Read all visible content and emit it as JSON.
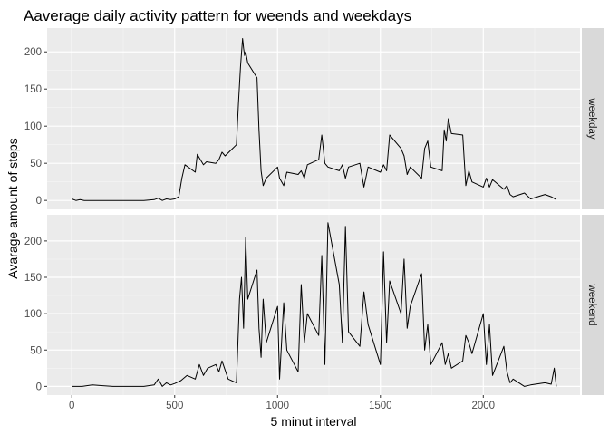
{
  "chart_data": {
    "type": "line",
    "title": "Aaverage daily activity pattern for weends and weekdays",
    "xlabel": "5 minut interval",
    "ylabel": "Avarage amount of steps",
    "xlim": [
      -120,
      2470
    ],
    "x_ticks": [
      0,
      500,
      1000,
      1500,
      2000
    ],
    "grid": true,
    "line_color": "#000000",
    "panel_background": "#ebebeb",
    "strip_background": "#d9d9d9",
    "facets": [
      {
        "label": "weekday",
        "ylim": [
          -12,
          232
        ],
        "y_ticks": [
          0,
          50,
          100,
          150,
          200
        ],
        "series": [
          {
            "x": [
              0,
              20,
              40,
              60,
              100,
              150,
              200,
              250,
              300,
              350,
              400,
              420,
              440,
              460,
              480,
              500,
              520,
              535,
              550,
              600,
              610,
              625,
              640,
              655,
              700,
              715,
              730,
              745,
              800,
              810,
              820,
              830,
              835,
              840,
              845,
              855,
              900,
              910,
              920,
              930,
              945,
              1000,
              1010,
              1030,
              1045,
              1100,
              1115,
              1130,
              1145,
              1200,
              1215,
              1230,
              1245,
              1300,
              1315,
              1330,
              1345,
              1400,
              1420,
              1440,
              1500,
              1515,
              1530,
              1545,
              1600,
              1615,
              1630,
              1645,
              1700,
              1715,
              1730,
              1745,
              1800,
              1810,
              1820,
              1830,
              1845,
              1900,
              1915,
              1930,
              1945,
              2000,
              2015,
              2030,
              2045,
              2100,
              2115,
              2130,
              2145,
              2200,
              2230,
              2300,
              2330,
              2355
            ],
            "y": [
              2,
              0,
              1,
              0,
              0,
              0,
              0,
              0,
              0,
              0,
              1,
              3,
              0,
              2,
              1,
              2,
              5,
              30,
              48,
              38,
              62,
              55,
              48,
              52,
              50,
              55,
              65,
              60,
              75,
              130,
              180,
              218,
              205,
              195,
              200,
              185,
              165,
              95,
              40,
              20,
              30,
              45,
              30,
              20,
              38,
              35,
              40,
              30,
              48,
              55,
              88,
              50,
              45,
              40,
              48,
              30,
              45,
              50,
              18,
              45,
              38,
              48,
              40,
              88,
              70,
              60,
              35,
              45,
              30,
              70,
              80,
              45,
              40,
              95,
              80,
              110,
              90,
              88,
              20,
              40,
              25,
              18,
              30,
              18,
              28,
              15,
              20,
              8,
              5,
              10,
              2,
              8,
              5,
              1
            ]
          }
        ]
      },
      {
        "label": "weekend",
        "ylim": [
          -12,
          236
        ],
        "y_ticks": [
          0,
          50,
          100,
          150,
          200
        ],
        "series": [
          {
            "x": [
              0,
              50,
              100,
              150,
              200,
              250,
              300,
              350,
              400,
              420,
              440,
              460,
              480,
              500,
              530,
              560,
              600,
              620,
              640,
              660,
              700,
              715,
              730,
              760,
              800,
              815,
              825,
              835,
              845,
              855,
              900,
              910,
              920,
              930,
              945,
              1000,
              1010,
              1030,
              1045,
              1100,
              1115,
              1130,
              1145,
              1200,
              1215,
              1230,
              1245,
              1300,
              1315,
              1330,
              1345,
              1400,
              1420,
              1440,
              1500,
              1515,
              1530,
              1545,
              1600,
              1615,
              1630,
              1645,
              1700,
              1715,
              1730,
              1745,
              1800,
              1815,
              1830,
              1845,
              1900,
              1915,
              1930,
              1945,
              2000,
              2015,
              2030,
              2045,
              2100,
              2115,
              2130,
              2145,
              2200,
              2230,
              2300,
              2330,
              2345,
              2355
            ],
            "y": [
              0,
              0,
              2,
              1,
              0,
              0,
              0,
              0,
              2,
              10,
              0,
              5,
              2,
              4,
              8,
              15,
              10,
              30,
              15,
              25,
              30,
              20,
              35,
              10,
              5,
              120,
              150,
              80,
              205,
              120,
              160,
              80,
              40,
              120,
              60,
              110,
              10,
              115,
              50,
              20,
              140,
              60,
              100,
              70,
              180,
              30,
              225,
              140,
              60,
              220,
              75,
              55,
              130,
              85,
              30,
              185,
              60,
              145,
              100,
              175,
              80,
              110,
              155,
              50,
              85,
              30,
              60,
              30,
              45,
              25,
              35,
              70,
              60,
              45,
              100,
              30,
              85,
              15,
              55,
              20,
              5,
              10,
              0,
              2,
              5,
              3,
              25,
              0
            ]
          }
        ]
      }
    ]
  }
}
